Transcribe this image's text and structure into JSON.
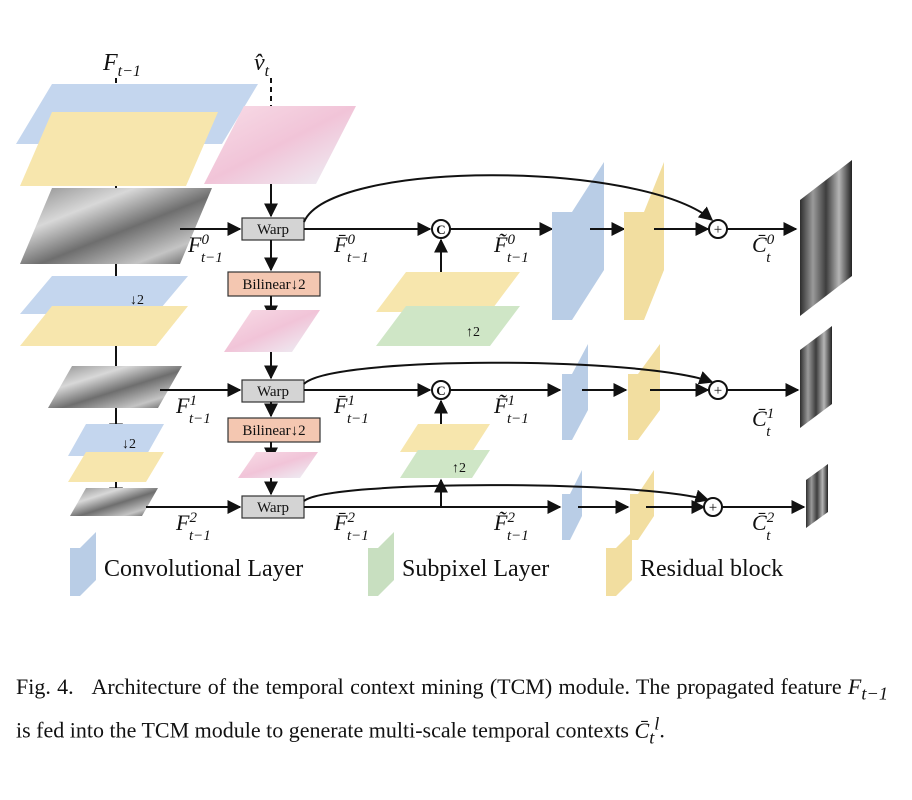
{
  "inputs": {
    "feature": {
      "base": "F",
      "sub": "t−1"
    },
    "motion": {
      "base": "v̂",
      "sub": "t"
    }
  },
  "blocks": {
    "warp": "Warp",
    "bilinear": "Bilinear",
    "downsample": "↓2",
    "upsample": "↑2",
    "concat": "C",
    "add": "+"
  },
  "labels": {
    "level0": {
      "f": "F",
      "f_sup": "0",
      "f_sub": "t−1",
      "fbar": "F̄",
      "fbar_sup": "0",
      "fbar_sub": "t−1",
      "ftilde": "F̃",
      "ftilde_sup": "0",
      "ftilde_sub": "t−1",
      "c": "C̄",
      "c_sup": "0",
      "c_sub": "t"
    },
    "level1": {
      "f": "F",
      "f_sup": "1",
      "f_sub": "t−1",
      "fbar": "F̄",
      "fbar_sup": "1",
      "fbar_sub": "t−1",
      "ftilde": "F̃",
      "ftilde_sup": "1",
      "ftilde_sub": "t−1",
      "c": "C̄",
      "c_sup": "1",
      "c_sub": "t"
    },
    "level2": {
      "f": "F",
      "f_sup": "2",
      "f_sub": "t−1",
      "fbar": "F̄",
      "fbar_sup": "2",
      "fbar_sub": "t−1",
      "ftilde": "F̃",
      "ftilde_sup": "2",
      "ftilde_sub": "t−1",
      "c": "C̄",
      "c_sup": "2",
      "c_sub": "t"
    }
  },
  "legend": [
    {
      "label": "Convolutional Layer",
      "color": "#b9cde6"
    },
    {
      "label": "Subpixel Layer",
      "color": "#c8dfc0"
    },
    {
      "label": "Residual block",
      "color": "#f2dea0"
    }
  ],
  "colors": {
    "blue": "#c4d6ee",
    "yellow": "#f7e6ad",
    "green": "#cfe6c6",
    "salmon": "#f4c7b1",
    "warp": "#d4d4d4",
    "motion": "#f6d7e4"
  },
  "caption": {
    "fig": "Fig. 4.",
    "t1": "Architecture of the temporal context mining (TCM) module. The propagated feature",
    "f": "F",
    "fsub": "t−1",
    "t2": "is fed into the TCM module to generate multi-scale temporal contexts",
    "c": "C̄",
    "csub": "t",
    "csup": "l",
    "t3": "."
  }
}
